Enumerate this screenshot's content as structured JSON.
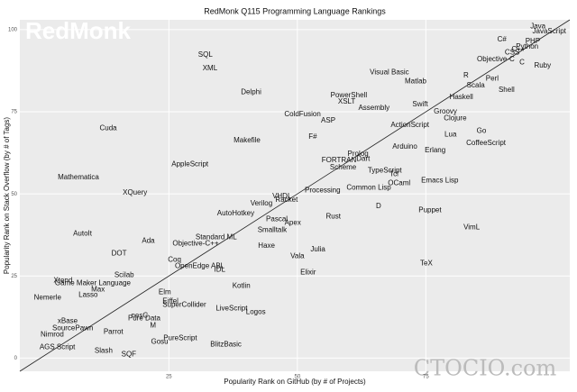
{
  "chart_data": {
    "type": "scatter",
    "title": "RedMonk Q115 Programming Language Rankings",
    "xlabel": "Popularity Rank on GitHub (by # of Projects)",
    "ylabel": "Popularity Rank on Stack Overflow (by # of Tags)",
    "watermarks": [
      "RedMonk",
      "CTOCIO.com"
    ],
    "xlim": [
      -4,
      103
    ],
    "ylim": [
      -4,
      103
    ],
    "xticks": [
      25,
      50,
      75
    ],
    "yticks": [
      0,
      25,
      50,
      75,
      100
    ],
    "grid": true,
    "reference_line": true,
    "labels": [
      "Java",
      "JavaScript",
      "C#",
      "PHP",
      "Python",
      "C++",
      "CSS",
      "Objective-C",
      "C",
      "Ruby",
      "R",
      "Perl",
      "Visual Basic",
      "Matlab",
      "Scala",
      "Shell",
      "PowerShell",
      "XSLT",
      "Haskell",
      "Swift",
      "Assembly",
      "Groovy",
      "Clojure",
      "ColdFusion",
      "ASP",
      "ActionScript",
      "Go",
      "Lua",
      "CoffeeScript",
      "F#",
      "Arduino",
      "Erlang",
      "Prolog",
      "Dart",
      "FORTRAN",
      "Scheme",
      "TypeScript",
      "Tcl",
      "OCaml",
      "Emacs Lisp",
      "Common Lisp",
      "Processing",
      "SQL",
      "XML",
      "Delphi",
      "Cuda",
      "Makefile",
      "AppleScript",
      "Mathematica",
      "XQuery",
      "Verilog",
      "VHDL",
      "Racket",
      "AutoHotkey",
      "D",
      "Puppet",
      "Rust",
      "Pascal",
      "Apex",
      "Smalltalk",
      "VimL",
      "AutoIt",
      "Standard ML",
      "Ada",
      "Objective-C++",
      "Haxe",
      "Julia",
      "DOT",
      "Vala",
      "Coq",
      "OpenEdge ABL",
      "IDL",
      "TeX",
      "Elixir",
      "Scilab",
      "Xtend",
      "Game Maker Language",
      "Kotlin",
      "Max",
      "Elm",
      "Lasso",
      "Nemerle",
      "Eiffel",
      "SuperCollider",
      "LiveScript",
      "Logos",
      "nesC",
      "Pure Data",
      "xBase",
      "M",
      "SourcePawn",
      "Parrot",
      "Nimrod",
      "PureScript",
      "Gosu",
      "BlitzBasic",
      "AGS Script",
      "Slash",
      "SQF"
    ],
    "x": [
      96.8,
      99,
      89.8,
      95.8,
      94.7,
      93,
      91.8,
      88.6,
      93.7,
      97.7,
      82.8,
      87.9,
      67.9,
      73,
      84.7,
      90.7,
      60,
      59.6,
      81.9,
      73.9,
      64.9,
      78.8,
      80.7,
      51,
      56,
      71.9,
      85.8,
      79.8,
      86.7,
      53,
      70.9,
      76.8,
      61.8,
      62.8,
      58.1,
      58.9,
      67,
      68.8,
      69.8,
      77.7,
      63.9,
      54.9,
      32.1,
      33,
      41,
      13.2,
      40.2,
      29.1,
      7.4,
      18.4,
      43,
      47,
      47.9,
      38,
      65.8,
      75.8,
      57,
      46,
      49.1,
      45.1,
      83.9,
      8.2,
      34.2,
      21,
      30.2,
      44,
      54,
      15.3,
      50,
      26.1,
      31,
      34.9,
      75.1,
      52.1,
      16.3,
      4.4,
      10.2,
      39.1,
      11.2,
      24.2,
      9.3,
      1.4,
      25.3,
      28,
      37.2,
      41.9,
      19.3,
      20.2,
      5.3,
      21.9,
      6.3,
      14.2,
      2.3,
      27.2,
      23.2,
      36.1,
      3.3,
      12.3,
      17.2
    ],
    "values": [
      101,
      99.5,
      97,
      96.4,
      94.8,
      94,
      93,
      91,
      90,
      89,
      86,
      85,
      87,
      84.3,
      83,
      81.6,
      80,
      78,
      79.4,
      77.2,
      76.1,
      75,
      73,
      74.2,
      72.3,
      70.9,
      69.2,
      68.1,
      65.4,
      67.3,
      64.3,
      63.2,
      62.1,
      60.7,
      60.2,
      58,
      57.1,
      56,
      53.3,
      54.1,
      51.9,
      51.1,
      92.3,
      88.2,
      81,
      70,
      66.2,
      59,
      55,
      50.3,
      47,
      49.2,
      48.1,
      44,
      46.2,
      45,
      43.1,
      42.3,
      41.2,
      39,
      39.8,
      37.9,
      36.8,
      35.7,
      34.9,
      34.1,
      33,
      31.9,
      31,
      29.9,
      28,
      26.9,
      28.8,
      26.1,
      25.3,
      23.6,
      22.8,
      22,
      20.9,
      20,
      19.2,
      18.4,
      17.3,
      16.2,
      15.1,
      14,
      12.9,
      12.1,
      11.3,
      9.9,
      9.1,
      8,
      7.1,
      6,
      4.9,
      4.1,
      3.3,
      2.2,
      1.1
    ]
  }
}
